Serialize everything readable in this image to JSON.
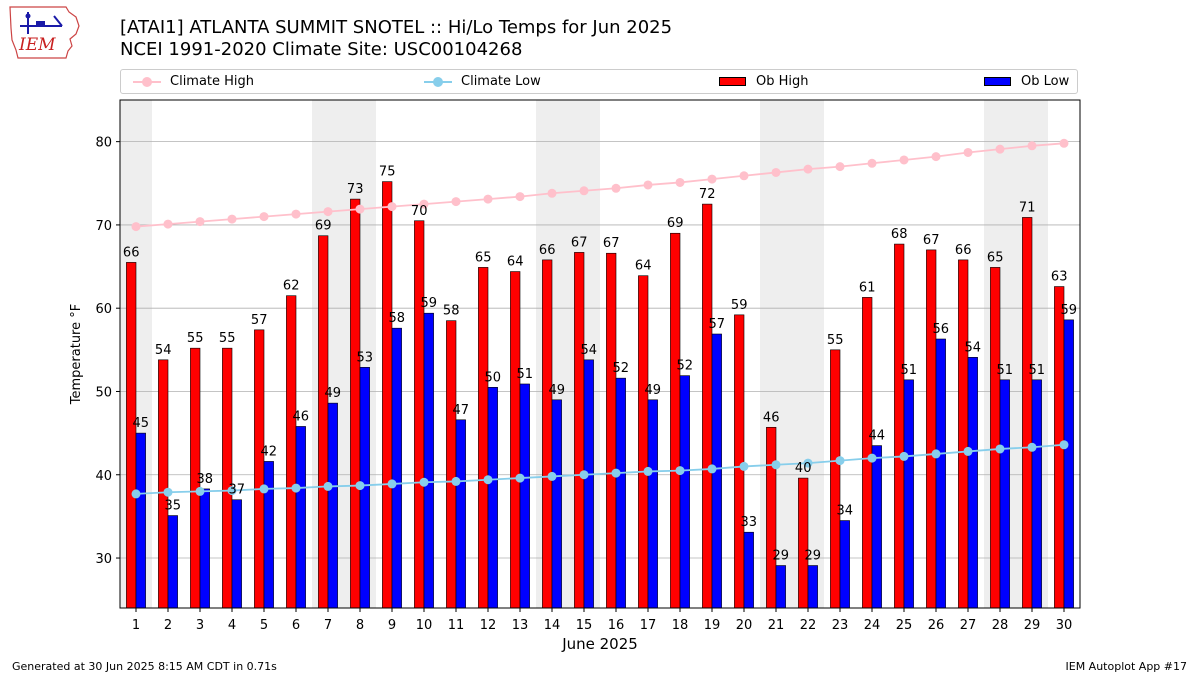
{
  "header": {
    "title_line1": "[ATAI1] ATLANTA SUMMIT SNOTEL :: Hi/Lo Temps for Jun 2025",
    "title_line2": "NCEI 1991-2020 Climate Site: USC00104268",
    "logo_text": "IEM"
  },
  "footer": {
    "generated": "Generated at 30 Jun 2025 8:15 AM CDT in 0.71s",
    "app": "IEM Autoplot App #17"
  },
  "colors": {
    "ob_high": "#ff0000",
    "ob_low": "#0000ff",
    "climate_high": "#ffc0cb",
    "climate_low": "#87ceeb",
    "weekend_shade": "#eeeeee",
    "grid": "#b0b0b0"
  },
  "chart_data": {
    "type": "bar",
    "xlabel": "June 2025",
    "ylabel": "Temperature °F",
    "ylim": [
      24,
      85
    ],
    "yticks": [
      30,
      40,
      50,
      60,
      70,
      80
    ],
    "grid": "horizontal",
    "legend_position": "top",
    "categories": [
      "1",
      "2",
      "3",
      "4",
      "5",
      "6",
      "7",
      "8",
      "9",
      "10",
      "11",
      "12",
      "13",
      "14",
      "15",
      "16",
      "17",
      "18",
      "19",
      "20",
      "21",
      "22",
      "23",
      "24",
      "25",
      "26",
      "27",
      "28",
      "29",
      "30"
    ],
    "weekend_days": [
      1,
      7,
      8,
      14,
      15,
      21,
      22,
      28,
      29
    ],
    "series": [
      {
        "name": "Ob High",
        "kind": "bar",
        "values": [
          65.5,
          53.8,
          55.2,
          55.2,
          57.4,
          61.5,
          68.7,
          73.1,
          75.2,
          70.5,
          58.5,
          64.9,
          64.4,
          65.8,
          66.7,
          66.6,
          63.9,
          69.0,
          72.5,
          59.2,
          45.7,
          39.6,
          55.0,
          61.3,
          67.7,
          67.0,
          65.8,
          64.9,
          70.9,
          62.6
        ],
        "labels": [
          "66",
          "54",
          "55",
          "55",
          "57",
          "62",
          "69",
          "73",
          "75",
          "70",
          "58",
          "65",
          "64",
          "66",
          "67",
          "67",
          "64",
          "69",
          "72",
          "59",
          "46",
          "40",
          "55",
          "61",
          "68",
          "67",
          "66",
          "65",
          "71",
          "63"
        ]
      },
      {
        "name": "Ob Low",
        "kind": "bar",
        "values": [
          45.0,
          35.1,
          38.3,
          37.0,
          41.6,
          45.8,
          48.6,
          52.9,
          57.6,
          59.4,
          46.6,
          50.5,
          50.9,
          49.0,
          53.8,
          51.6,
          49.0,
          51.9,
          56.9,
          33.1,
          29.1,
          29.1,
          34.5,
          43.5,
          51.4,
          56.3,
          54.1,
          51.4,
          51.4,
          58.6
        ],
        "labels": [
          "45",
          "35",
          "38",
          "37",
          "42",
          "46",
          "49",
          "53",
          "58",
          "59",
          "47",
          "50",
          "51",
          "49",
          "54",
          "52",
          "49",
          "52",
          "57",
          "33",
          "29",
          "29",
          "34",
          "44",
          "51",
          "56",
          "54",
          "51",
          "51",
          "59"
        ]
      },
      {
        "name": "Climate High",
        "kind": "line",
        "values": [
          69.8,
          70.1,
          70.4,
          70.7,
          71.0,
          71.3,
          71.6,
          71.9,
          72.2,
          72.5,
          72.8,
          73.1,
          73.4,
          73.8,
          74.1,
          74.4,
          74.8,
          75.1,
          75.5,
          75.9,
          76.3,
          76.7,
          77.0,
          77.4,
          77.8,
          78.2,
          78.7,
          79.1,
          79.5,
          79.8
        ]
      },
      {
        "name": "Climate Low",
        "kind": "line",
        "values": [
          37.7,
          37.9,
          38.0,
          38.1,
          38.3,
          38.4,
          38.6,
          38.7,
          38.9,
          39.1,
          39.2,
          39.4,
          39.6,
          39.8,
          40.0,
          40.2,
          40.4,
          40.5,
          40.7,
          41.0,
          41.2,
          41.4,
          41.7,
          42.0,
          42.2,
          42.5,
          42.8,
          43.1,
          43.3,
          43.6
        ]
      }
    ]
  }
}
